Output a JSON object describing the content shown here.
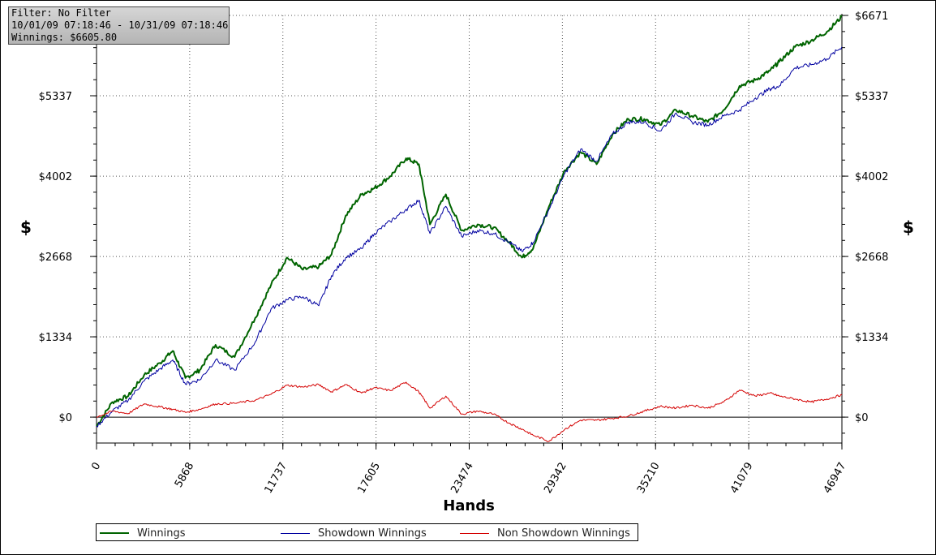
{
  "filter_box": {
    "line1": "Filter: No Filter",
    "line2": "10/01/09 07:18:46 - 10/31/09 07:18:46",
    "line3": "Winnings: $6605.80"
  },
  "chart_data": {
    "type": "line",
    "xlabel": "Hands",
    "ylabel": "$",
    "xlim": [
      0,
      46947
    ],
    "ylim": [
      -430,
      6671
    ],
    "x_ticks": [
      0,
      5868,
      11737,
      17605,
      23474,
      29342,
      35210,
      41079,
      46947
    ],
    "x_tick_labels": [
      "0",
      "5868",
      "11737",
      "17605",
      "23474",
      "29342",
      "35210",
      "41079",
      "46947"
    ],
    "y_ticks": [
      0,
      1334,
      2668,
      4002,
      5337,
      6671
    ],
    "y_tick_labels": [
      "$0",
      "$1334",
      "$2668",
      "$4002",
      "$5337",
      "$6671"
    ],
    "grid": true,
    "legend_position": "bottom",
    "x": [
      0,
      1000,
      2000,
      3000,
      4000,
      4800,
      5600,
      6500,
      7500,
      8700,
      10000,
      11000,
      12000,
      13000,
      14000,
      14800,
      15700,
      16700,
      17500,
      18500,
      19500,
      20300,
      21000,
      22000,
      23000,
      24000,
      25000,
      26000,
      26800,
      27500,
      28500,
      29500,
      30500,
      31500,
      32500,
      33500,
      34500,
      35500,
      36500,
      37500,
      38500,
      39500,
      40500,
      41500,
      42400,
      43000,
      44000,
      45000,
      46000,
      46947
    ],
    "series": [
      {
        "name": "Winnings",
        "color": "#006400",
        "values": [
          -150,
          250,
          350,
          700,
          900,
          1100,
          650,
          780,
          1200,
          1000,
          1650,
          2200,
          2650,
          2450,
          2500,
          2700,
          3350,
          3700,
          3800,
          4000,
          4300,
          4200,
          3200,
          3700,
          3100,
          3200,
          3150,
          2900,
          2650,
          2800,
          3500,
          4100,
          4400,
          4200,
          4700,
          4950,
          4950,
          4850,
          5100,
          5000,
          4900,
          5100,
          5500,
          5600,
          5750,
          5900,
          6150,
          6250,
          6400,
          6650
        ]
      },
      {
        "name": "Showdown Winnings",
        "color": "#0000a0",
        "values": [
          -150,
          100,
          280,
          600,
          800,
          950,
          550,
          620,
          950,
          780,
          1250,
          1800,
          1950,
          2000,
          1850,
          2350,
          2650,
          2800,
          3050,
          3250,
          3450,
          3600,
          3050,
          3500,
          3000,
          3100,
          3050,
          2900,
          2750,
          2900,
          3450,
          4050,
          4450,
          4250,
          4700,
          4900,
          4900,
          4750,
          5050,
          4900,
          4850,
          5000,
          5100,
          5300,
          5450,
          5500,
          5800,
          5850,
          5950,
          6150
        ]
      },
      {
        "name": "Non Showdown Winnings",
        "color": "#d40000",
        "values": [
          0,
          100,
          60,
          220,
          170,
          130,
          80,
          130,
          220,
          230,
          280,
          380,
          530,
          500,
          540,
          420,
          540,
          400,
          490,
          440,
          580,
          420,
          150,
          350,
          50,
          100,
          50,
          -100,
          -200,
          -300,
          -400,
          -200,
          -50,
          -50,
          -20,
          20,
          100,
          180,
          150,
          200,
          150,
          250,
          450,
          350,
          400,
          350,
          300,
          250,
          300,
          370
        ]
      }
    ]
  }
}
